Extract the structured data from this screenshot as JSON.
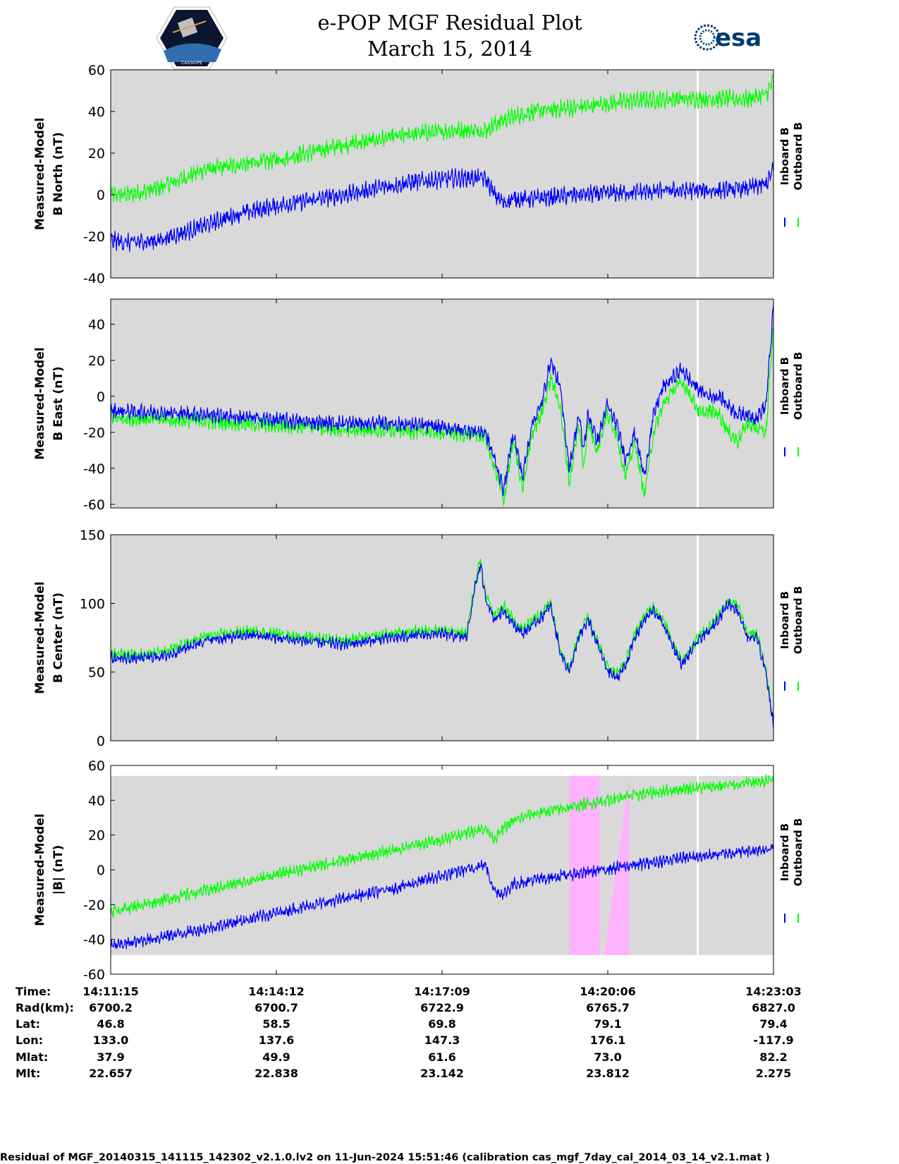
{
  "header": {
    "title_line1": "e-POP MGF Residual Plot",
    "title_line2": "March 15, 2014",
    "esa_logo_text": "esa",
    "cassiope_logo_text": "CASSIOPE"
  },
  "colors": {
    "inboard": "#0000ff",
    "outboard": "#00ff00",
    "panel_bg": "#d9d9d9",
    "marker_line": "#ffffff",
    "highlight": "#ffb3ff"
  },
  "legend": {
    "inboard_label": "Inboard B",
    "outboard_label": "Outboard B"
  },
  "x_axis": {
    "start_seconds": 0,
    "end_seconds": 708,
    "tick_seconds": [
      0,
      177,
      354,
      531,
      708
    ],
    "white_line_seconds": 627
  },
  "chart_data": [
    {
      "type": "line",
      "id": "north",
      "ylabel_line1": "Measured-Model",
      "ylabel_line2": "B North (nT)",
      "ylim": [
        -40,
        60
      ],
      "yticks": [
        "60",
        "40",
        "20",
        "0",
        "-20",
        "-40"
      ],
      "ytick_values": [
        60,
        40,
        20,
        0,
        -20,
        -40
      ],
      "noise": 3,
      "series": [
        {
          "name": "Inboard B",
          "x": [
            0,
            20,
            50,
            100,
            130,
            180,
            250,
            320,
            370,
            400,
            410,
            420,
            430,
            450,
            500,
            550,
            600,
            650,
            680,
            700,
            708
          ],
          "y": [
            -22,
            -23,
            -22,
            -15,
            -10,
            -5,
            0,
            6,
            8,
            8,
            0,
            -4,
            -2,
            -2,
            0,
            1,
            2,
            2,
            3,
            5,
            12
          ]
        },
        {
          "name": "Outboard B",
          "x": [
            0,
            20,
            50,
            100,
            180,
            250,
            320,
            370,
            400,
            420,
            450,
            500,
            550,
            600,
            650,
            680,
            700,
            708
          ],
          "y": [
            0,
            0,
            3,
            12,
            17,
            24,
            29,
            31,
            31,
            36,
            40,
            42,
            45,
            46,
            46,
            46,
            48,
            55
          ]
        }
      ]
    },
    {
      "type": "line",
      "id": "east",
      "ylabel_line1": "Measured-Model",
      "ylabel_line2": "B East (nT)",
      "ylim": [
        -62,
        54
      ],
      "yticks": [
        "40",
        "20",
        "0",
        "-20",
        "-40",
        "-60"
      ],
      "ytick_values": [
        40,
        20,
        0,
        -20,
        -40,
        -60
      ],
      "noise": 3,
      "series": [
        {
          "name": "Inboard B",
          "x": [
            0,
            100,
            200,
            250,
            300,
            350,
            400,
            410,
            420,
            430,
            440,
            450,
            460,
            470,
            480,
            490,
            500,
            505,
            510,
            520,
            530,
            540,
            550,
            560,
            570,
            580,
            590,
            600,
            610,
            620,
            630,
            640,
            650,
            660,
            670,
            680,
            690,
            700,
            708
          ],
          "y": [
            -8,
            -10,
            -14,
            -15,
            -15,
            -17,
            -20,
            -35,
            -52,
            -20,
            -45,
            -15,
            -5,
            20,
            5,
            -40,
            -10,
            -30,
            -10,
            -25,
            -5,
            -15,
            -35,
            -20,
            -45,
            -10,
            5,
            10,
            15,
            8,
            3,
            0,
            0,
            -5,
            -10,
            -10,
            -12,
            -5,
            50
          ]
        },
        {
          "name": "Outboard B",
          "x": [
            0,
            100,
            200,
            250,
            300,
            350,
            400,
            410,
            420,
            430,
            440,
            450,
            460,
            470,
            480,
            490,
            500,
            505,
            510,
            520,
            530,
            540,
            550,
            560,
            570,
            580,
            590,
            600,
            610,
            620,
            630,
            640,
            650,
            660,
            670,
            680,
            690,
            700,
            708
          ],
          "y": [
            -12,
            -14,
            -17,
            -19,
            -19,
            -20,
            -22,
            -40,
            -58,
            -25,
            -52,
            -20,
            -10,
            10,
            -5,
            -48,
            -15,
            -40,
            -15,
            -30,
            -10,
            -20,
            -45,
            -25,
            -55,
            -20,
            -5,
            3,
            8,
            0,
            -10,
            -8,
            -10,
            -20,
            -25,
            -15,
            -18,
            -20,
            40
          ]
        }
      ]
    },
    {
      "type": "line",
      "id": "center",
      "ylabel_line1": "Measured-Model",
      "ylabel_line2": "B Center (nT)",
      "ylim": [
        0,
        150
      ],
      "yticks": [
        "150",
        "100",
        "50",
        "0"
      ],
      "ytick_values": [
        150,
        100,
        50,
        0
      ],
      "noise": 3,
      "series": [
        {
          "name": "Inboard B",
          "x": [
            0,
            30,
            60,
            100,
            150,
            200,
            250,
            300,
            350,
            380,
            390,
            395,
            400,
            410,
            420,
            430,
            440,
            460,
            470,
            480,
            490,
            500,
            510,
            520,
            530,
            540,
            550,
            560,
            570,
            580,
            590,
            600,
            610,
            620,
            630,
            640,
            650,
            660,
            670,
            680,
            690,
            700,
            708
          ],
          "y": [
            60,
            60,
            62,
            73,
            77,
            73,
            70,
            75,
            78,
            75,
            115,
            128,
            105,
            88,
            95,
            85,
            78,
            90,
            98,
            65,
            50,
            75,
            88,
            70,
            52,
            45,
            55,
            75,
            88,
            95,
            85,
            70,
            55,
            65,
            75,
            80,
            90,
            100,
            95,
            75,
            75,
            50,
            10
          ]
        },
        {
          "name": "Outboard B",
          "x": [
            0,
            30,
            60,
            100,
            150,
            200,
            250,
            300,
            350,
            380,
            390,
            395,
            400,
            410,
            420,
            430,
            440,
            460,
            470,
            480,
            490,
            500,
            510,
            520,
            530,
            540,
            550,
            560,
            570,
            580,
            590,
            600,
            610,
            620,
            630,
            640,
            650,
            660,
            670,
            680,
            690,
            700,
            708
          ],
          "y": [
            63,
            63,
            65,
            76,
            80,
            76,
            73,
            78,
            81,
            78,
            118,
            131,
            108,
            91,
            98,
            88,
            81,
            93,
            101,
            68,
            53,
            78,
            91,
            73,
            55,
            48,
            58,
            78,
            91,
            98,
            88,
            73,
            58,
            68,
            78,
            83,
            93,
            103,
            98,
            78,
            78,
            53,
            13
          ]
        }
      ]
    },
    {
      "type": "line",
      "id": "total",
      "ylabel_line1": "Measured-Model",
      "ylabel_line2": "|B| (nT)",
      "ylim": [
        -60,
        60
      ],
      "yticks": [
        "60",
        "40",
        "20",
        "0",
        "-20",
        "-40",
        "-60"
      ],
      "ytick_values": [
        60,
        40,
        20,
        0,
        -20,
        -40,
        -60
      ],
      "plot_band": [
        -49,
        54
      ],
      "noise": 2.5,
      "highlight_regions": [
        {
          "x_start": 490,
          "x_end": 522,
          "shape": "rect"
        },
        {
          "x_start": 527,
          "x_end": 554,
          "shape": "wedge"
        }
      ],
      "series": [
        {
          "name": "Inboard B",
          "x": [
            0,
            100,
            200,
            300,
            350,
            400,
            410,
            420,
            430,
            450,
            500,
            550,
            600,
            650,
            700,
            708
          ],
          "y": [
            -44,
            -34,
            -22,
            -11,
            -4,
            3,
            -12,
            -14,
            -8,
            -6,
            -2,
            2,
            6,
            9,
            12,
            13
          ]
        },
        {
          "name": "Outboard B",
          "x": [
            0,
            100,
            200,
            300,
            350,
            400,
            410,
            420,
            430,
            450,
            500,
            550,
            600,
            650,
            700,
            708
          ],
          "y": [
            -24,
            -12,
            0,
            11,
            17,
            24,
            18,
            24,
            28,
            32,
            37,
            42,
            46,
            48,
            51,
            52
          ]
        }
      ]
    }
  ],
  "ephemeris": {
    "labels": [
      "Time:",
      "Rad(km):",
      "Lat:",
      "Lon:",
      "Mlat:",
      "Mlt:"
    ],
    "columns": [
      [
        "14:11:15",
        "6700.2",
        "46.8",
        "133.0",
        "37.9",
        "22.657"
      ],
      [
        "14:14:12",
        "6700.7",
        "58.5",
        "137.6",
        "49.9",
        "22.838"
      ],
      [
        "14:17:09",
        "6722.9",
        "69.8",
        "147.3",
        "61.6",
        "23.142"
      ],
      [
        "14:20:06",
        "6765.7",
        "79.1",
        "176.1",
        "73.0",
        "23.812"
      ],
      [
        "14:23:03",
        "6827.0",
        "79.4",
        "-117.9",
        "82.2",
        "2.275"
      ]
    ]
  },
  "footer": "Residual of MGF_20140315_141115_142302_v2.1.0.lv2 on 11-Jun-2024 15:51:46 (calibration cas_mgf_7day_cal_2014_03_14_v2.1.mat )"
}
